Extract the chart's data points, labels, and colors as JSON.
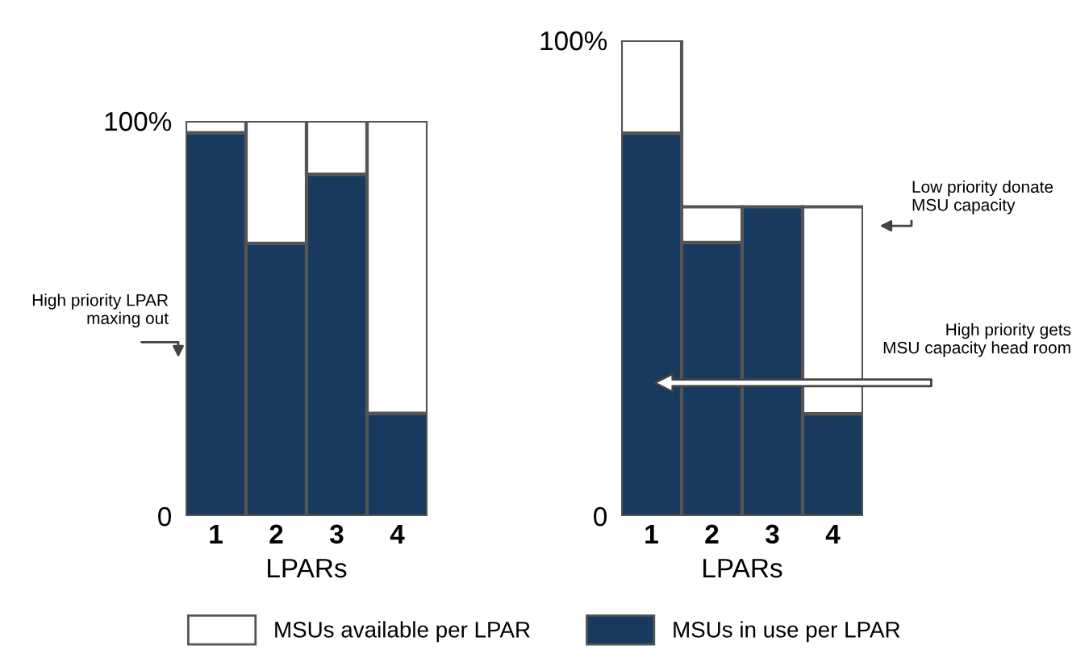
{
  "chart_data": [
    {
      "type": "bar",
      "stacked": true,
      "categories": [
        "1",
        "2",
        "3",
        "4"
      ],
      "xlabel": "LPARs",
      "ylim": [
        0,
        100
      ],
      "yticks": [
        0,
        {
          "value": 100,
          "label": "100%"
        }
      ],
      "grid": false,
      "legend": "bottom",
      "series": [
        {
          "name": "MSUs in use per LPAR",
          "color": "#173a5e",
          "values": [
            97,
            69,
            86.5,
            26
          ]
        },
        {
          "name": "MSUs available per LPAR",
          "color": "#ffffff",
          "values": [
            3,
            31,
            13.5,
            74
          ]
        }
      ],
      "annotations": [
        "High priority LPAR\nmaxing out"
      ]
    },
    {
      "type": "bar",
      "stacked": true,
      "categories": [
        "1",
        "2",
        "3",
        "4"
      ],
      "xlabel": "LPARs",
      "ylim": [
        0,
        100
      ],
      "yticks": [
        0,
        {
          "value": 100,
          "label": "100%"
        }
      ],
      "grid": false,
      "series": [
        {
          "name": "MSUs in use per LPAR",
          "color": "#173a5e",
          "values": [
            80.5,
            57.5,
            65,
            21.5
          ]
        },
        {
          "name": "MSUs available per LPAR",
          "color": "#ffffff",
          "values": [
            19.5,
            7.5,
            null,
            43.5
          ]
        }
      ],
      "annotations": [
        "Low priority donate\nMSU capacity",
        "High priority gets\nMSU capacity head room"
      ]
    }
  ]
}
